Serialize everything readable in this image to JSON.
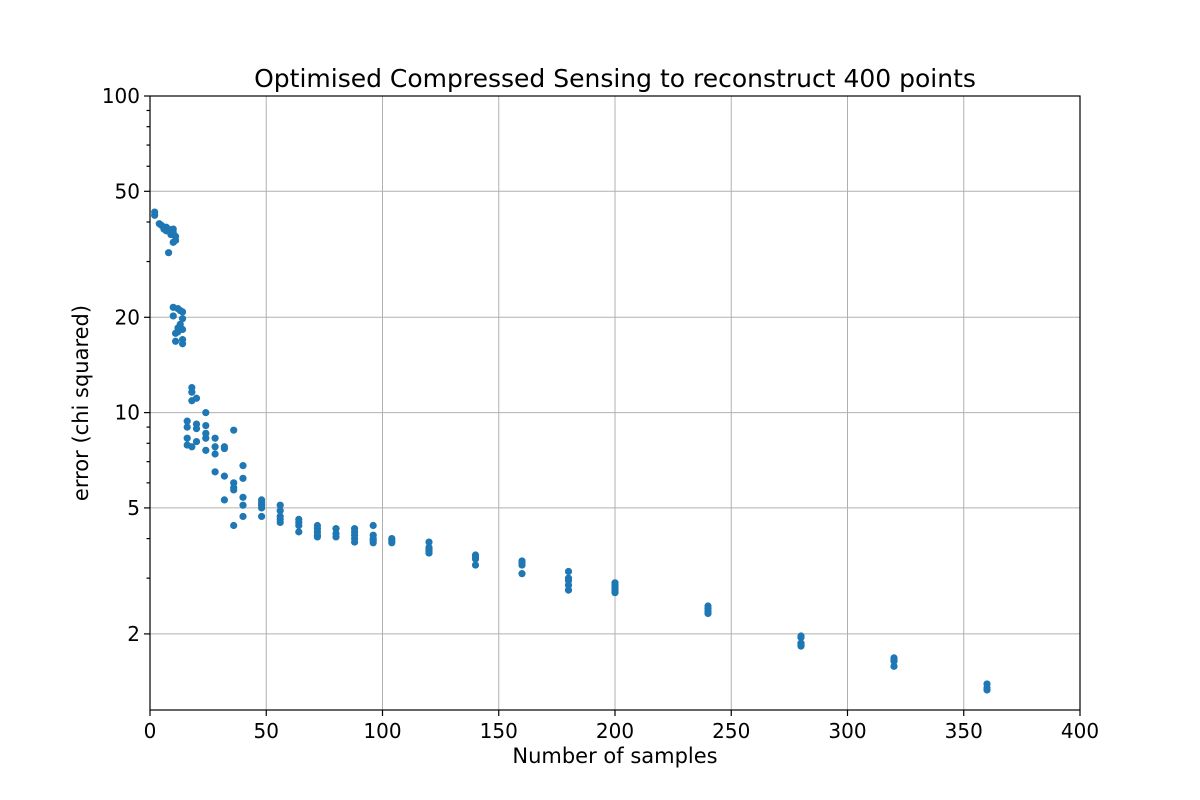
{
  "chart_data": {
    "type": "scatter",
    "title": "Optimised Compressed Sensing to reconstruct 400 points",
    "xlabel": "Number of samples",
    "ylabel": "error (chi squared)",
    "xlim": [
      0,
      400
    ],
    "ylim": [
      1.15,
      100
    ],
    "y_scale": "log",
    "grid": true,
    "marker_color": "#1f77b4",
    "x_ticks": [
      0,
      50,
      100,
      150,
      200,
      250,
      300,
      350,
      400
    ],
    "x_tick_labels": [
      "0",
      "50",
      "100",
      "150",
      "200",
      "250",
      "300",
      "350",
      "400"
    ],
    "y_ticks": [
      2,
      5,
      10,
      20,
      50,
      100
    ],
    "y_tick_labels": [
      "2",
      "5",
      "10",
      "20",
      "50",
      "100"
    ],
    "series": [
      {
        "points": [
          [
            2,
            43
          ],
          [
            2,
            42
          ],
          [
            4,
            39.5
          ],
          [
            5,
            39
          ],
          [
            6,
            38
          ],
          [
            7,
            37.5
          ],
          [
            7,
            38.5
          ],
          [
            8,
            38
          ],
          [
            8,
            32
          ],
          [
            9,
            37.5
          ],
          [
            9,
            36.5
          ],
          [
            10,
            38
          ],
          [
            10,
            37
          ],
          [
            10,
            34.5
          ],
          [
            11,
            35
          ],
          [
            11,
            36
          ],
          [
            10,
            21.5
          ],
          [
            10,
            20.2
          ],
          [
            12,
            21.3
          ],
          [
            12,
            18.5
          ],
          [
            12,
            18
          ],
          [
            13,
            21
          ],
          [
            13,
            19
          ],
          [
            11,
            17.8
          ],
          [
            11,
            16.8
          ],
          [
            14,
            20.8
          ],
          [
            14,
            19.8
          ],
          [
            14,
            18.3
          ],
          [
            14,
            17
          ],
          [
            14,
            16.5
          ],
          [
            16,
            9.4
          ],
          [
            16,
            9
          ],
          [
            16,
            8.3
          ],
          [
            16,
            7.9
          ],
          [
            18,
            12
          ],
          [
            18,
            11.6
          ],
          [
            18,
            10.9
          ],
          [
            18,
            7.8
          ],
          [
            20,
            11.1
          ],
          [
            20,
            9.2
          ],
          [
            20,
            8.9
          ],
          [
            20,
            8.1
          ],
          [
            24,
            10
          ],
          [
            24,
            9.1
          ],
          [
            24,
            8.6
          ],
          [
            24,
            8.3
          ],
          [
            24,
            7.6
          ],
          [
            28,
            8.3
          ],
          [
            28,
            7.8
          ],
          [
            28,
            7.4
          ],
          [
            28,
            6.5
          ],
          [
            32,
            7.8
          ],
          [
            32,
            7.7
          ],
          [
            32,
            6.3
          ],
          [
            32,
            5.3
          ],
          [
            36,
            8.8
          ],
          [
            36,
            6
          ],
          [
            36,
            5.8
          ],
          [
            36,
            5.7
          ],
          [
            36,
            4.4
          ],
          [
            40,
            6.8
          ],
          [
            40,
            6.2
          ],
          [
            40,
            5.4
          ],
          [
            40,
            5.1
          ],
          [
            40,
            4.7
          ],
          [
            48,
            5.3
          ],
          [
            48,
            5.2
          ],
          [
            48,
            5.1
          ],
          [
            48,
            5
          ],
          [
            48,
            4.7
          ],
          [
            56,
            5.1
          ],
          [
            56,
            4.9
          ],
          [
            56,
            4.7
          ],
          [
            56,
            4.6
          ],
          [
            56,
            4.5
          ],
          [
            64,
            4.6
          ],
          [
            64,
            4.5
          ],
          [
            64,
            4.4
          ],
          [
            64,
            4.2
          ],
          [
            72,
            4.4
          ],
          [
            72,
            4.3
          ],
          [
            72,
            4.2
          ],
          [
            72,
            4.1
          ],
          [
            72,
            4.05
          ],
          [
            80,
            4.3
          ],
          [
            80,
            4.15
          ],
          [
            80,
            4.05
          ],
          [
            88,
            4.3
          ],
          [
            88,
            4.2
          ],
          [
            88,
            4.1
          ],
          [
            88,
            4
          ],
          [
            88,
            3.9
          ],
          [
            96,
            4.4
          ],
          [
            96,
            4.1
          ],
          [
            96,
            4
          ],
          [
            96,
            3.95
          ],
          [
            96,
            3.88
          ],
          [
            104,
            4
          ],
          [
            104,
            3.95
          ],
          [
            104,
            3.88
          ],
          [
            120,
            3.9
          ],
          [
            120,
            3.75
          ],
          [
            120,
            3.7
          ],
          [
            120,
            3.65
          ],
          [
            120,
            3.6
          ],
          [
            140,
            3.55
          ],
          [
            140,
            3.5
          ],
          [
            140,
            3.45
          ],
          [
            140,
            3.3
          ],
          [
            160,
            3.4
          ],
          [
            160,
            3.35
          ],
          [
            160,
            3.3
          ],
          [
            160,
            3.1
          ],
          [
            180,
            3.15
          ],
          [
            180,
            3
          ],
          [
            180,
            2.95
          ],
          [
            180,
            2.85
          ],
          [
            180,
            2.75
          ],
          [
            200,
            2.9
          ],
          [
            200,
            2.85
          ],
          [
            200,
            2.8
          ],
          [
            200,
            2.75
          ],
          [
            200,
            2.7
          ],
          [
            240,
            2.45
          ],
          [
            240,
            2.4
          ],
          [
            240,
            2.35
          ],
          [
            240,
            2.32
          ],
          [
            280,
            1.97
          ],
          [
            280,
            1.95
          ],
          [
            280,
            1.87
          ],
          [
            280,
            1.85
          ],
          [
            280,
            1.83
          ],
          [
            320,
            1.68
          ],
          [
            320,
            1.66
          ],
          [
            320,
            1.64
          ],
          [
            320,
            1.58
          ],
          [
            360,
            1.39
          ],
          [
            360,
            1.35
          ],
          [
            360,
            1.33
          ]
        ]
      }
    ]
  }
}
